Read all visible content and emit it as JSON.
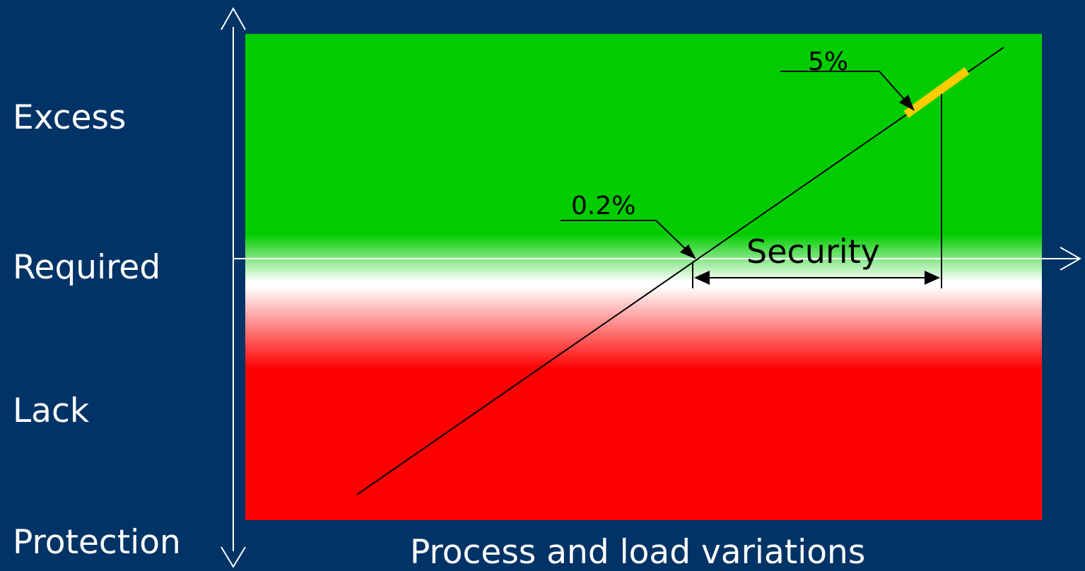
{
  "y_axis": {
    "title": "Protection",
    "levels": [
      "Excess",
      "Required",
      "Lack"
    ]
  },
  "x_axis": {
    "title": "Process and load variations"
  },
  "annotations": {
    "required_point": "0.2%",
    "excess_segment": "5%",
    "margin": "Security"
  },
  "colors": {
    "background": "#003366",
    "excess_zone": "#00cc00",
    "required_zone": "#ffffff",
    "lack_zone": "#ff0000",
    "highlight_segment": "#ffcc00",
    "axes": "#ffffff",
    "lines": "#000000"
  }
}
